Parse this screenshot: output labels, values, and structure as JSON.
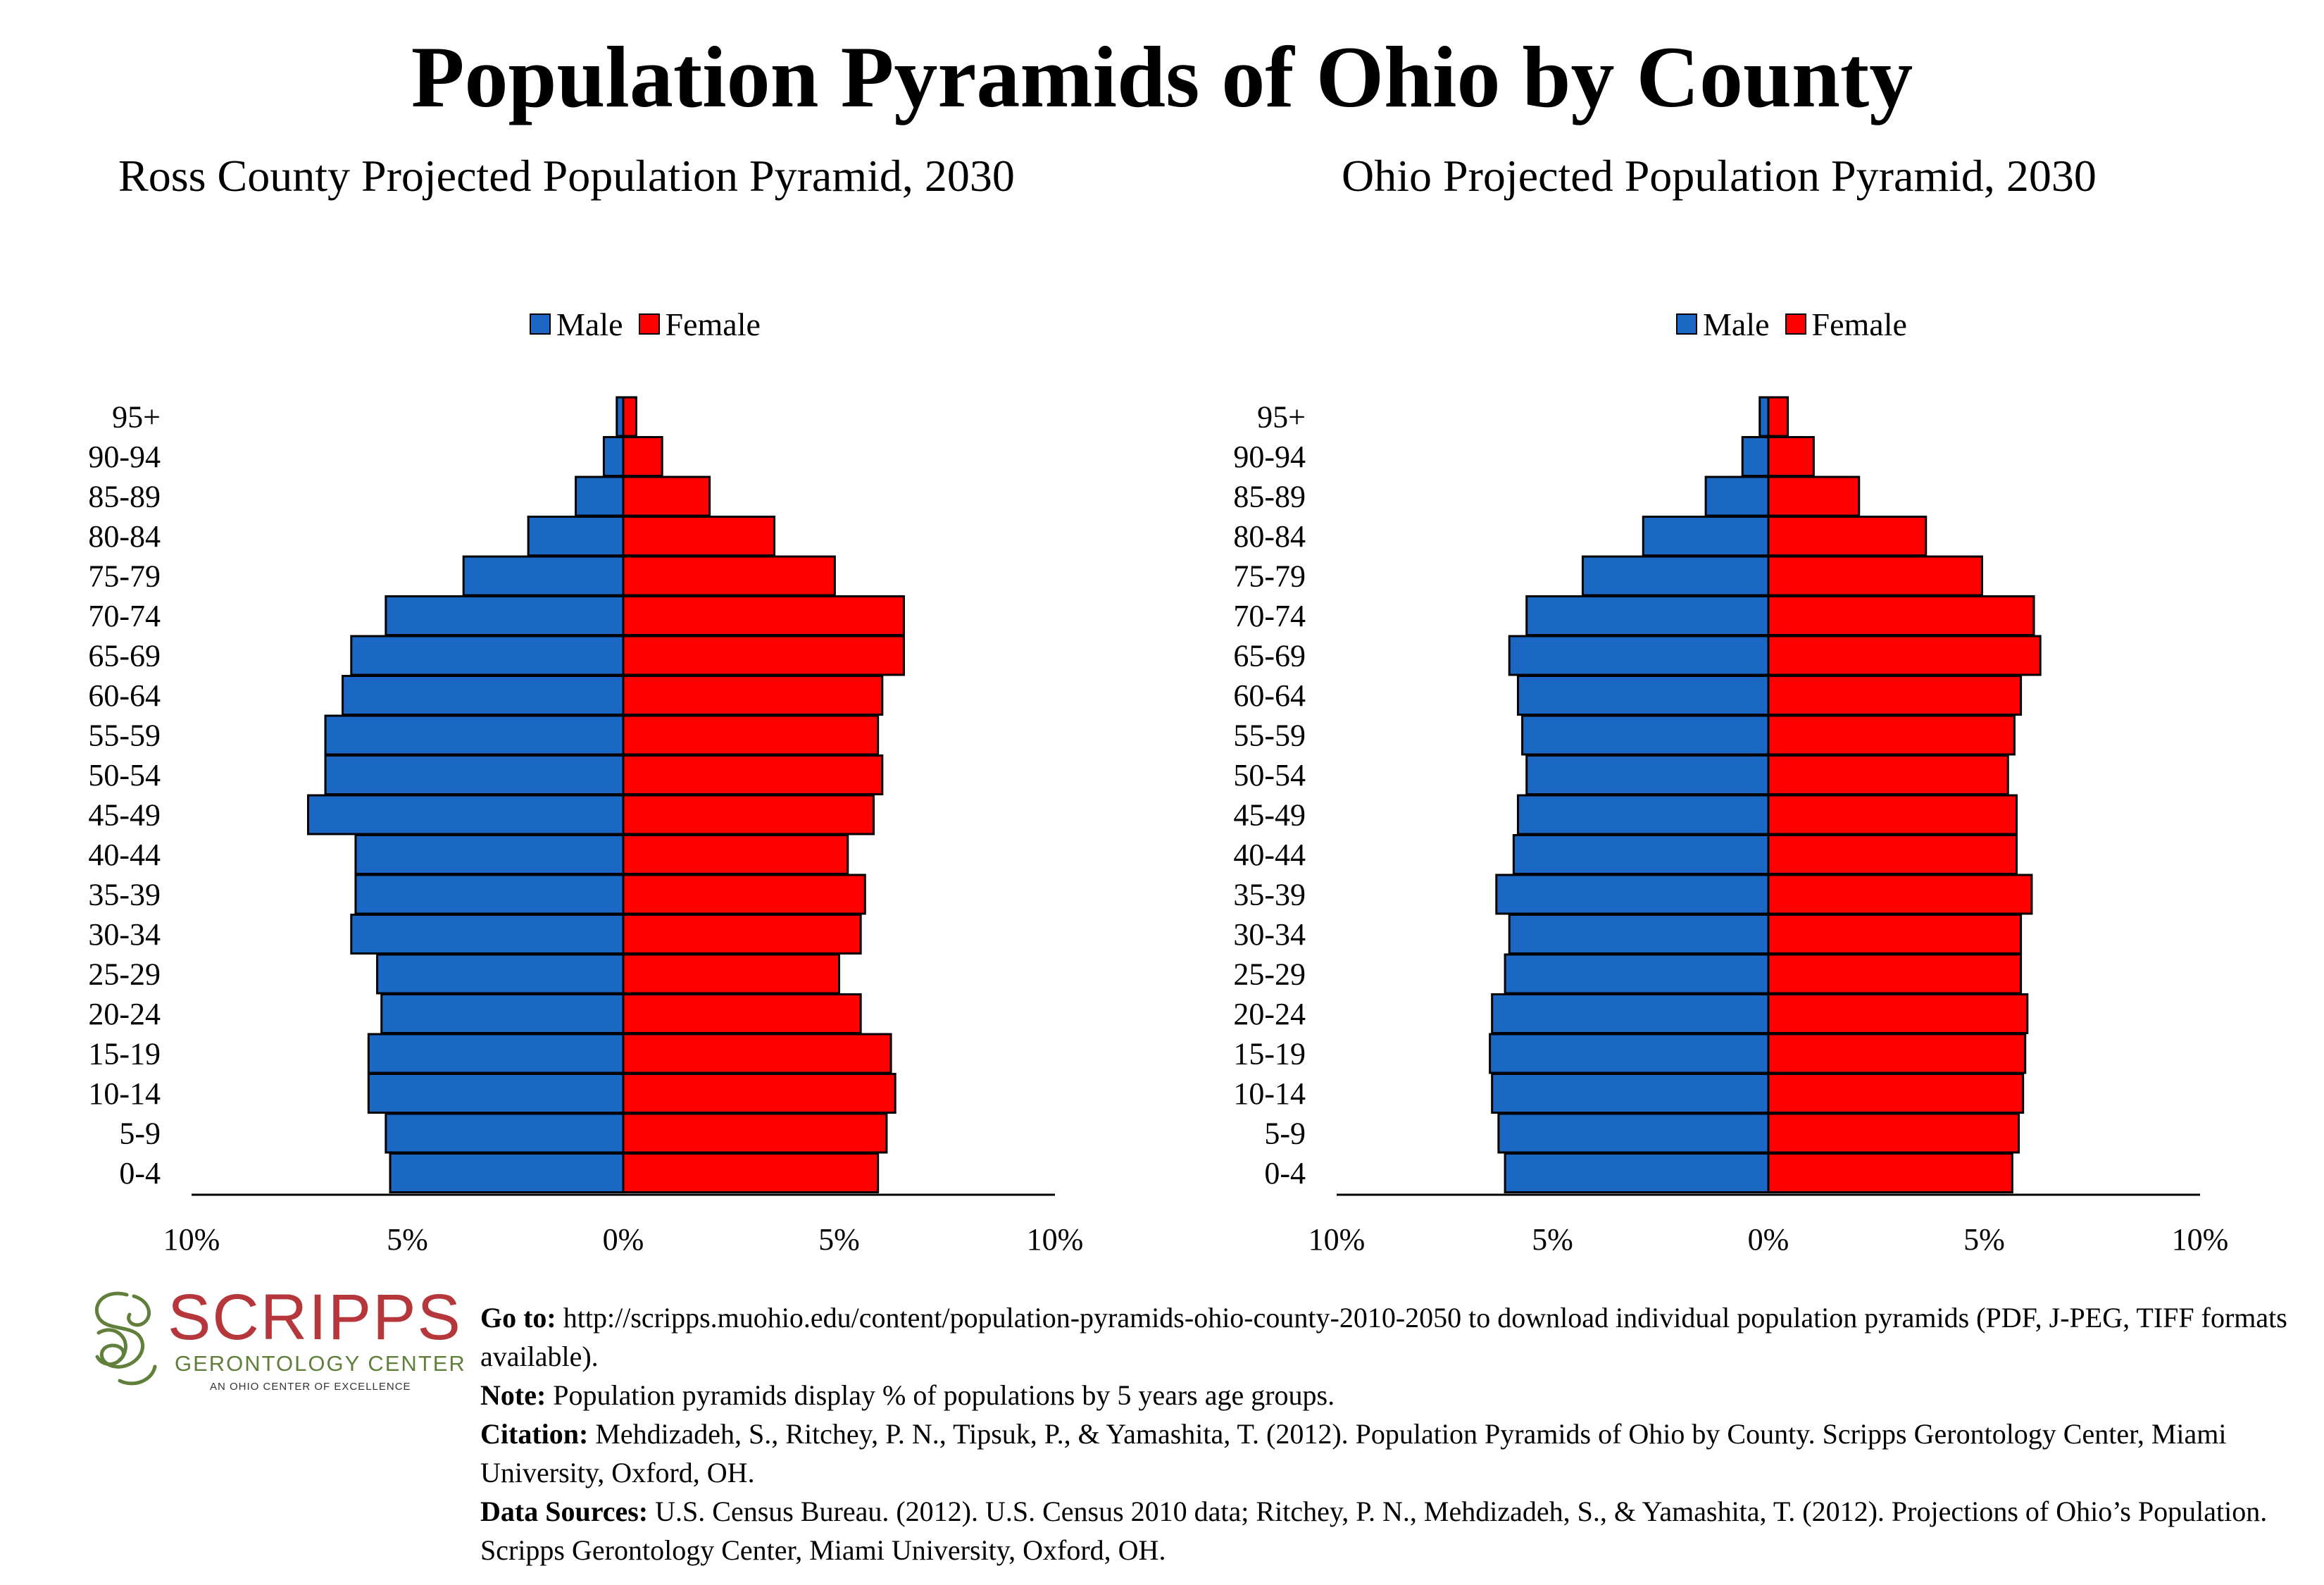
{
  "title": "Population Pyramids of Ohio by County",
  "legend": {
    "male": "Male",
    "female": "Female"
  },
  "colors": {
    "male": "#1a67c4",
    "female": "#ff0000",
    "outline": "#000000"
  },
  "chart_data": [
    {
      "type": "bar",
      "orientation": "horizontal-pyramid",
      "title": "Ross County Projected Population Pyramid, 2030",
      "categories": [
        "95+",
        "90-94",
        "85-89",
        "80-84",
        "75-79",
        "70-74",
        "65-69",
        "60-64",
        "55-59",
        "50-54",
        "45-49",
        "40-44",
        "35-39",
        "30-34",
        "25-29",
        "20-24",
        "15-19",
        "10-14",
        "5-9",
        "0-4"
      ],
      "series": [
        {
          "name": "Male",
          "values": [
            0.15,
            0.45,
            1.1,
            2.2,
            3.7,
            5.5,
            6.3,
            6.5,
            6.9,
            6.9,
            7.3,
            6.2,
            6.2,
            6.3,
            5.7,
            5.6,
            5.9,
            5.9,
            5.5,
            5.4
          ]
        },
        {
          "name": "Female",
          "values": [
            0.3,
            0.9,
            2.0,
            3.5,
            4.9,
            6.5,
            6.5,
            6.0,
            5.9,
            6.0,
            5.8,
            5.2,
            5.6,
            5.5,
            5.0,
            5.5,
            6.2,
            6.3,
            6.1,
            5.9
          ]
        }
      ],
      "xlim": [
        -10,
        10
      ],
      "xticks": [
        "10%",
        "5%",
        "0%",
        "5%",
        "10%"
      ],
      "legend_position": "top"
    },
    {
      "type": "bar",
      "orientation": "horizontal-pyramid",
      "title": "Ohio Projected Population Pyramid, 2030",
      "categories": [
        "95+",
        "90-94",
        "85-89",
        "80-84",
        "75-79",
        "70-74",
        "65-69",
        "60-64",
        "55-59",
        "50-54",
        "45-49",
        "40-44",
        "35-39",
        "30-34",
        "25-29",
        "20-24",
        "15-19",
        "10-14",
        "5-9",
        "0-4"
      ],
      "series": [
        {
          "name": "Male",
          "values": [
            0.2,
            0.6,
            1.45,
            2.9,
            4.3,
            5.6,
            6.0,
            5.8,
            5.7,
            5.6,
            5.8,
            5.9,
            6.3,
            6.0,
            6.1,
            6.4,
            6.45,
            6.4,
            6.25,
            6.1
          ]
        },
        {
          "name": "Female",
          "values": [
            0.45,
            1.05,
            2.1,
            3.65,
            4.95,
            6.15,
            6.3,
            5.85,
            5.7,
            5.55,
            5.75,
            5.75,
            6.1,
            5.85,
            5.85,
            6.0,
            5.95,
            5.9,
            5.8,
            5.65
          ]
        }
      ],
      "xlim": [
        -10,
        10
      ],
      "xticks": [
        "10%",
        "5%",
        "0%",
        "5%",
        "10%"
      ],
      "legend_position": "top"
    }
  ],
  "logo": {
    "word": "SCRIPPS",
    "sub": "GERONTOLOGY CENTER",
    "tag": "AN OHIO CENTER OF EXCELLENCE"
  },
  "notes": {
    "goto_label": "Go to:",
    "goto_text": "http://scripps.muohio.edu/content/population-pyramids-ohio-county-2010-2050 to download individual population pyramids (PDF, J-PEG, TIFF formats available).",
    "note_label": "Note:",
    "note_text": "Population pyramids display % of populations by 5 years age groups.",
    "citation_label": "Citation:",
    "citation_text": "Mehdizadeh, S., Ritchey, P. N., Tipsuk, P., & Yamashita, T. (2012). Population Pyramids of Ohio by County. Scripps Gerontology Center, Miami University, Oxford, OH.",
    "sources_label": "Data Sources:",
    "sources_text": "U.S. Census Bureau. (2012). U.S. Census 2010 data; Ritchey, P. N., Mehdizadeh, S., & Yamashita, T. (2012). Projections of Ohio’s Population. Scripps Gerontology Center, Miami University, Oxford, OH."
  }
}
